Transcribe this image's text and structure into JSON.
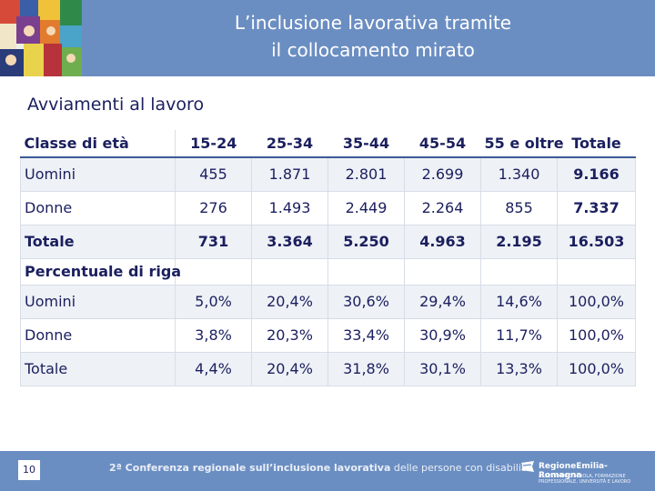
{
  "header": {
    "title_line1": "L’inclusione lavorativa tramite",
    "title_line2": "il collocamento mirato"
  },
  "subtitle": "Avviamenti al lavoro",
  "table": {
    "columns": [
      "Classe di età",
      "15-24",
      "25-34",
      "35-44",
      "45-54",
      "55 e oltre",
      "Totale"
    ],
    "rows": [
      {
        "label": "Uomini",
        "values": [
          "455",
          "1.871",
          "2.801",
          "2.699",
          "1.340",
          "9.166"
        ]
      },
      {
        "label": "Donne",
        "values": [
          "276",
          "1.493",
          "2.449",
          "2.264",
          "855",
          "7.337"
        ]
      },
      {
        "label": "Totale",
        "values": [
          "731",
          "3.364",
          "5.250",
          "4.963",
          "2.195",
          "16.503"
        ]
      }
    ],
    "section_label": "Percentuale di riga",
    "pct_rows": [
      {
        "label": "Uomini",
        "values": [
          "5,0%",
          "20,4%",
          "30,6%",
          "29,4%",
          "14,6%",
          "100,0%"
        ]
      },
      {
        "label": "Donne",
        "values": [
          "3,8%",
          "20,3%",
          "33,4%",
          "30,9%",
          "11,7%",
          "100,0%"
        ]
      },
      {
        "label": "Totale",
        "values": [
          "4,4%",
          "20,4%",
          "31,8%",
          "30,1%",
          "13,3%",
          "100,0%"
        ]
      }
    ]
  },
  "footer": {
    "page_number": "10",
    "conference_prefix": "2ª Conferenza regionale sull’inclusione lavorativa",
    "conference_suffix": " delle persone con disabilità",
    "logo_name": "RegioneEmilia-Romagna",
    "logo_sub": "ASSESSORATO SCUOLA, FORMAZIONE PROFESSIONALE, UNIVERSITÀ E LAVORO"
  },
  "colors": {
    "band": "#6b8ec2",
    "text_dark": "#1b1f5e",
    "highlight_row": "#eef1f6"
  }
}
